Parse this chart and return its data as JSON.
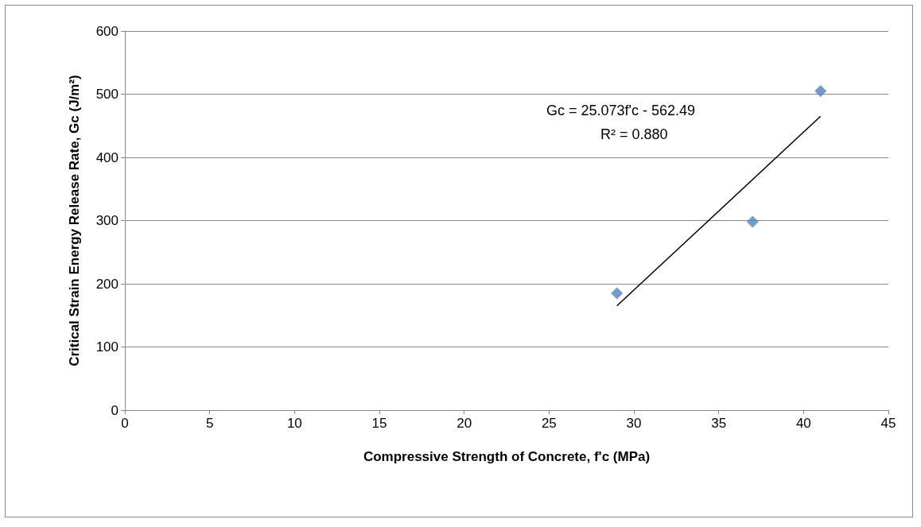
{
  "chart_data": {
    "type": "scatter",
    "xlabel": "Compressive Strength of Concrete, f'c (MPa)",
    "ylabel": "Critical Strain Energy Release Rate, Gc (J/m²)",
    "series": [
      {
        "color": "#4f81bd",
        "marker": "diamond",
        "x": [
          29,
          37,
          41
        ],
        "values": [
          185,
          298,
          505
        ]
      },
      {
        "type": "line",
        "color": "#000000",
        "marker": "none",
        "line_style": "solid",
        "x": [
          29,
          41
        ],
        "values": [
          165,
          465
        ]
      }
    ],
    "annotations": [
      "Gc = 25.073f'c - 562.49",
      "R² = 0.880"
    ],
    "xlim": [
      0,
      45
    ],
    "xticks": [
      0,
      5,
      10,
      15,
      20,
      25,
      30,
      35,
      40,
      45
    ],
    "ylim": [
      0,
      600
    ],
    "yticks": [
      0,
      100,
      200,
      300,
      400,
      500,
      600
    ],
    "grid": "y"
  }
}
